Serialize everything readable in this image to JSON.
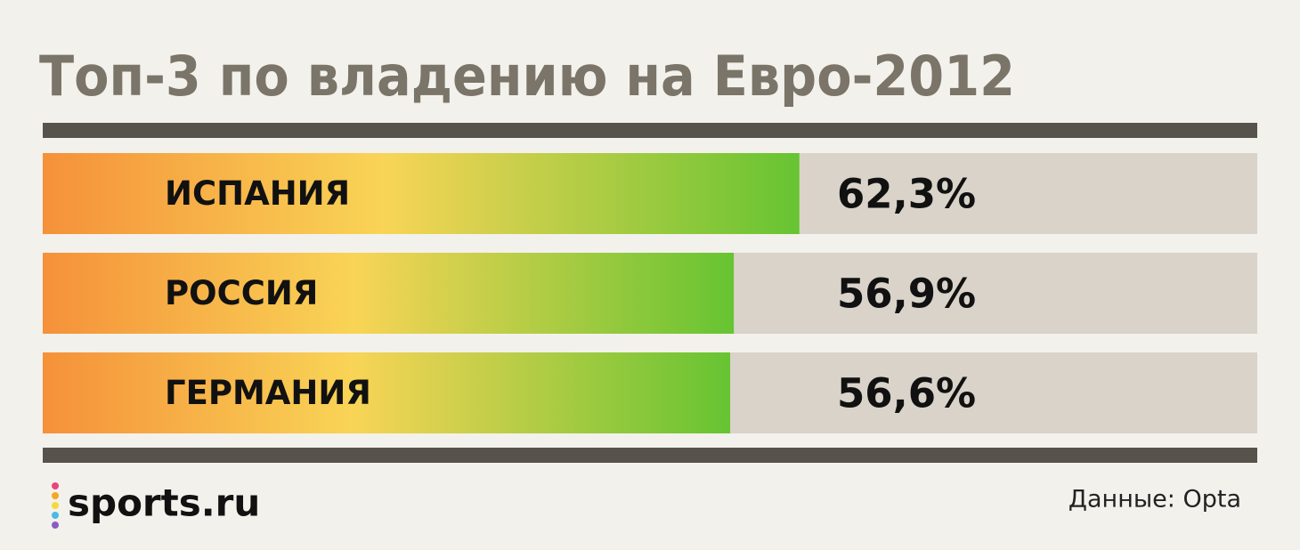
{
  "chart_data": {
    "type": "bar",
    "orientation": "horizontal",
    "title": "Топ-3 по владению на Евро-2012",
    "categories": [
      "ИСПАНИЯ",
      "РОССИЯ",
      "ГЕРМАНИЯ"
    ],
    "values": [
      62.3,
      56.9,
      56.6
    ],
    "value_labels": [
      "62,3%",
      "56,9%",
      "56,6%"
    ],
    "xlim": [
      0,
      100
    ],
    "colors": [
      "#f5913a",
      "#f9d456",
      "#66c432"
    ],
    "track_color": "#d9d3c9",
    "logo": "sports.ru",
    "source": "Данные: Opta"
  }
}
